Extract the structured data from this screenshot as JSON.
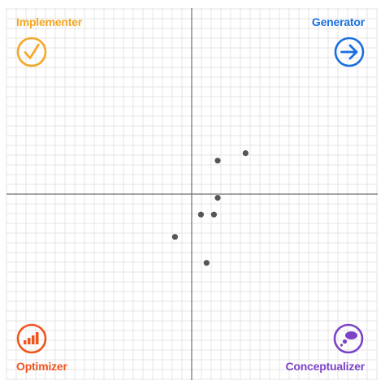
{
  "quadrants": {
    "top_left": {
      "label": "Implementer",
      "icon": "checkmark-circle-icon",
      "color": "#f5a623"
    },
    "top_right": {
      "label": "Generator",
      "icon": "arrow-right-circle-icon",
      "color": "#1a6fe0"
    },
    "bottom_left": {
      "label": "Optimizer",
      "icon": "bar-chart-circle-icon",
      "color": "#f0541e"
    },
    "bottom_right": {
      "label": "Conceptualizer",
      "icon": "thought-bubble-circle-icon",
      "color": "#7b44c7"
    }
  },
  "chart_data": {
    "type": "scatter",
    "title": "",
    "xlabel": "",
    "ylabel": "",
    "xlim": [
      -10,
      10
    ],
    "ylim": [
      -10,
      10
    ],
    "grid": true,
    "point_color": "#555555",
    "points": [
      {
        "x": 2.9,
        "y": 2.2
      },
      {
        "x": 1.4,
        "y": 1.8
      },
      {
        "x": 1.4,
        "y": -0.2
      },
      {
        "x": 0.5,
        "y": -1.1
      },
      {
        "x": 1.2,
        "y": -1.1
      },
      {
        "x": -0.9,
        "y": -2.3
      },
      {
        "x": 0.8,
        "y": -3.7
      }
    ]
  }
}
